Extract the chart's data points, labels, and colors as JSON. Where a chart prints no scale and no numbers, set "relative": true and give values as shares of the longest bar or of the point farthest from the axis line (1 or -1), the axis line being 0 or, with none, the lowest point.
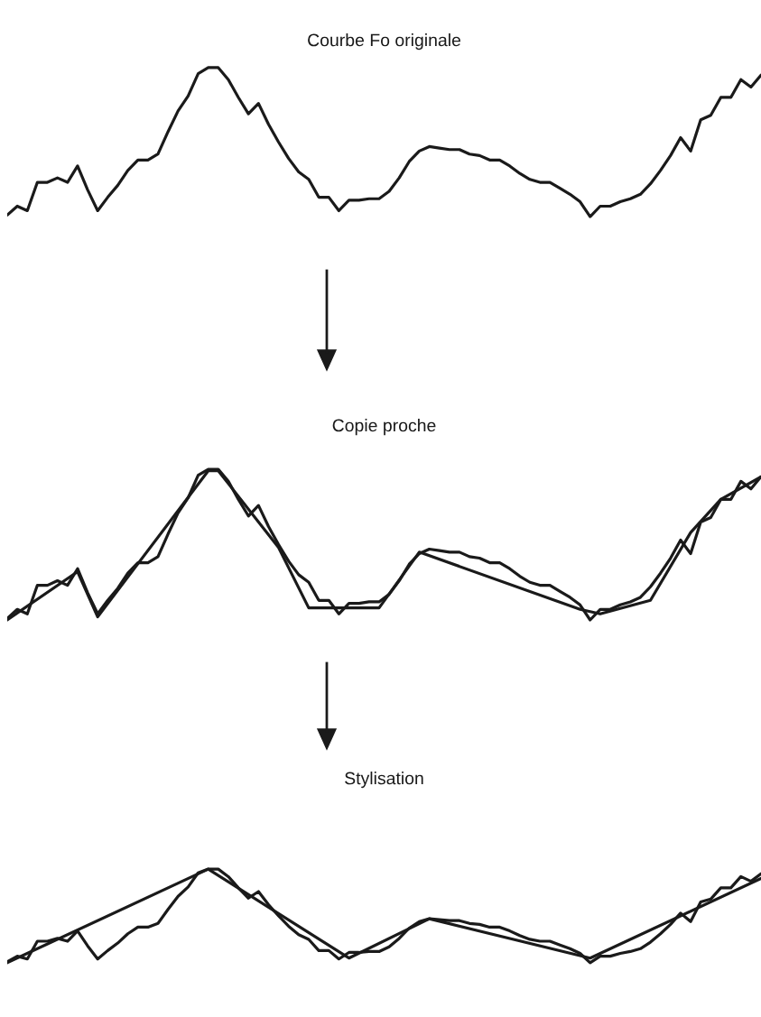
{
  "chart_data": [
    {
      "type": "line",
      "title": "Courbe Fo originale",
      "relative": true,
      "marker": "none",
      "line_style": "solid",
      "tick_labels": false,
      "categories": [
        null,
        null,
        null,
        null,
        null,
        null,
        null,
        null,
        null,
        null,
        null,
        null,
        null,
        null,
        null,
        null,
        null,
        null,
        null,
        null,
        null,
        null,
        null,
        null,
        null,
        null,
        null,
        null,
        null,
        null,
        null,
        null,
        null,
        null,
        null,
        null,
        null,
        null,
        null,
        null,
        null,
        null,
        null,
        null,
        null,
        null,
        null,
        null,
        null,
        null,
        null,
        null,
        null,
        null,
        null,
        null,
        null,
        null,
        null,
        null,
        null,
        null,
        null,
        null,
        null,
        null,
        null,
        null,
        null,
        null,
        null,
        null,
        null,
        null,
        null,
        null
      ],
      "series": [
        {
          "color": "#1a1a1a",
          "values": [
            0.01,
            0.07,
            0.04,
            0.23,
            0.23,
            0.26,
            0.23,
            0.34,
            0.18,
            0.04,
            0.13,
            0.21,
            0.31,
            0.38,
            0.38,
            0.42,
            0.57,
            0.71,
            0.81,
            0.96,
            1.0,
            1.0,
            0.92,
            0.8,
            0.69,
            0.76,
            0.62,
            0.5,
            0.39,
            0.3,
            0.25,
            0.13,
            0.13,
            0.04,
            0.11,
            0.11,
            0.12,
            0.12,
            0.17,
            0.26,
            0.37,
            0.44,
            0.47,
            0.46,
            0.45,
            0.45,
            0.42,
            0.41,
            0.38,
            0.38,
            0.34,
            0.29,
            0.25,
            0.23,
            0.23,
            0.19,
            0.15,
            0.1,
            0.0,
            0.07,
            0.07,
            0.1,
            0.12,
            0.15,
            0.22,
            0.31,
            0.41,
            0.53,
            0.44,
            0.65,
            0.68,
            0.8,
            0.8,
            0.92,
            0.87,
            0.95
          ]
        }
      ]
    },
    {
      "type": "line",
      "title": "Copie proche",
      "relative": true,
      "marker": "none",
      "line_style": "solid",
      "tick_labels": false,
      "categories": [
        null,
        null,
        null,
        null,
        null,
        null,
        null,
        null,
        null,
        null,
        null,
        null,
        null,
        null,
        null,
        null,
        null,
        null,
        null,
        null,
        null,
        null,
        null,
        null,
        null,
        null,
        null,
        null,
        null,
        null,
        null,
        null,
        null,
        null,
        null,
        null,
        null,
        null,
        null,
        null,
        null,
        null,
        null,
        null,
        null,
        null,
        null,
        null,
        null,
        null,
        null,
        null,
        null,
        null,
        null,
        null,
        null,
        null,
        null,
        null,
        null,
        null,
        null,
        null,
        null,
        null,
        null,
        null,
        null,
        null,
        null,
        null,
        null,
        null,
        null,
        null
      ],
      "series": [
        {
          "color": "#1a1a1a",
          "values": [
            0.01,
            0.07,
            0.04,
            0.23,
            0.23,
            0.26,
            0.23,
            0.34,
            0.18,
            0.04,
            0.13,
            0.21,
            0.31,
            0.38,
            0.38,
            0.42,
            0.57,
            0.71,
            0.81,
            0.96,
            1.0,
            1.0,
            0.92,
            0.8,
            0.69,
            0.76,
            0.62,
            0.5,
            0.39,
            0.3,
            0.25,
            0.13,
            0.13,
            0.04,
            0.11,
            0.11,
            0.12,
            0.12,
            0.17,
            0.26,
            0.37,
            0.44,
            0.47,
            0.46,
            0.45,
            0.45,
            0.42,
            0.41,
            0.38,
            0.38,
            0.34,
            0.29,
            0.25,
            0.23,
            0.23,
            0.19,
            0.15,
            0.1,
            0.0,
            0.07,
            0.07,
            0.1,
            0.12,
            0.15,
            0.22,
            0.31,
            0.41,
            0.53,
            0.44,
            0.65,
            0.68,
            0.8,
            0.8,
            0.92,
            0.87,
            0.95
          ]
        },
        {
          "color": "#1a1a1a",
          "values": [
            0.0,
            null,
            null,
            null,
            null,
            null,
            null,
            0.32,
            null,
            0.02,
            null,
            null,
            null,
            null,
            null,
            null,
            null,
            null,
            null,
            null,
            0.99,
            0.99,
            null,
            null,
            null,
            null,
            null,
            0.48,
            null,
            null,
            0.08,
            null,
            null,
            null,
            null,
            null,
            null,
            0.08,
            null,
            null,
            null,
            0.45,
            null,
            null,
            null,
            null,
            null,
            null,
            null,
            null,
            null,
            null,
            null,
            null,
            null,
            null,
            null,
            0.07,
            null,
            0.04,
            null,
            null,
            null,
            null,
            0.13,
            null,
            null,
            null,
            0.58,
            null,
            null,
            0.8,
            null,
            null,
            null,
            0.95
          ]
        }
      ]
    },
    {
      "type": "line",
      "title": "Stylisation",
      "relative": true,
      "marker": "none",
      "line_style": "solid",
      "tick_labels": false,
      "categories": [
        null,
        null,
        null,
        null,
        null,
        null,
        null,
        null,
        null,
        null,
        null,
        null,
        null,
        null,
        null,
        null,
        null,
        null,
        null,
        null,
        null,
        null,
        null,
        null,
        null,
        null,
        null,
        null,
        null,
        null,
        null,
        null,
        null,
        null,
        null,
        null,
        null,
        null,
        null,
        null,
        null,
        null,
        null,
        null,
        null,
        null,
        null,
        null,
        null,
        null,
        null,
        null,
        null,
        null,
        null,
        null,
        null,
        null,
        null,
        null,
        null,
        null,
        null,
        null,
        null,
        null,
        null,
        null,
        null,
        null,
        null,
        null,
        null,
        null,
        null,
        null
      ],
      "series": [
        {
          "color": "#1a1a1a",
          "values": [
            0.01,
            0.07,
            0.04,
            0.23,
            0.23,
            0.26,
            0.23,
            0.34,
            0.18,
            0.04,
            0.13,
            0.21,
            0.31,
            0.38,
            0.38,
            0.42,
            0.57,
            0.71,
            0.81,
            0.96,
            1.0,
            1.0,
            0.92,
            0.8,
            0.69,
            0.76,
            0.62,
            0.5,
            0.39,
            0.3,
            0.25,
            0.13,
            0.13,
            0.04,
            0.11,
            0.11,
            0.12,
            0.12,
            0.17,
            0.26,
            0.37,
            0.44,
            0.47,
            0.46,
            0.45,
            0.45,
            0.42,
            0.41,
            0.38,
            0.38,
            0.34,
            0.29,
            0.25,
            0.23,
            0.23,
            0.19,
            0.15,
            0.1,
            0.0,
            0.07,
            0.07,
            0.1,
            0.12,
            0.15,
            0.22,
            0.31,
            0.41,
            0.53,
            0.44,
            0.65,
            0.68,
            0.8,
            0.8,
            0.92,
            0.87,
            0.95
          ]
        },
        {
          "color": "#1a1a1a",
          "values": [
            0.0,
            null,
            null,
            null,
            null,
            null,
            null,
            null,
            null,
            null,
            null,
            null,
            null,
            null,
            null,
            null,
            null,
            null,
            null,
            null,
            1.0,
            null,
            null,
            null,
            null,
            null,
            null,
            null,
            null,
            null,
            null,
            null,
            null,
            null,
            0.05,
            null,
            null,
            null,
            null,
            null,
            null,
            null,
            0.47,
            null,
            null,
            null,
            null,
            null,
            null,
            null,
            null,
            null,
            null,
            null,
            null,
            null,
            null,
            null,
            0.05,
            null,
            null,
            null,
            null,
            null,
            null,
            null,
            null,
            null,
            null,
            null,
            null,
            null,
            null,
            null,
            null,
            0.9
          ]
        }
      ]
    }
  ]
}
